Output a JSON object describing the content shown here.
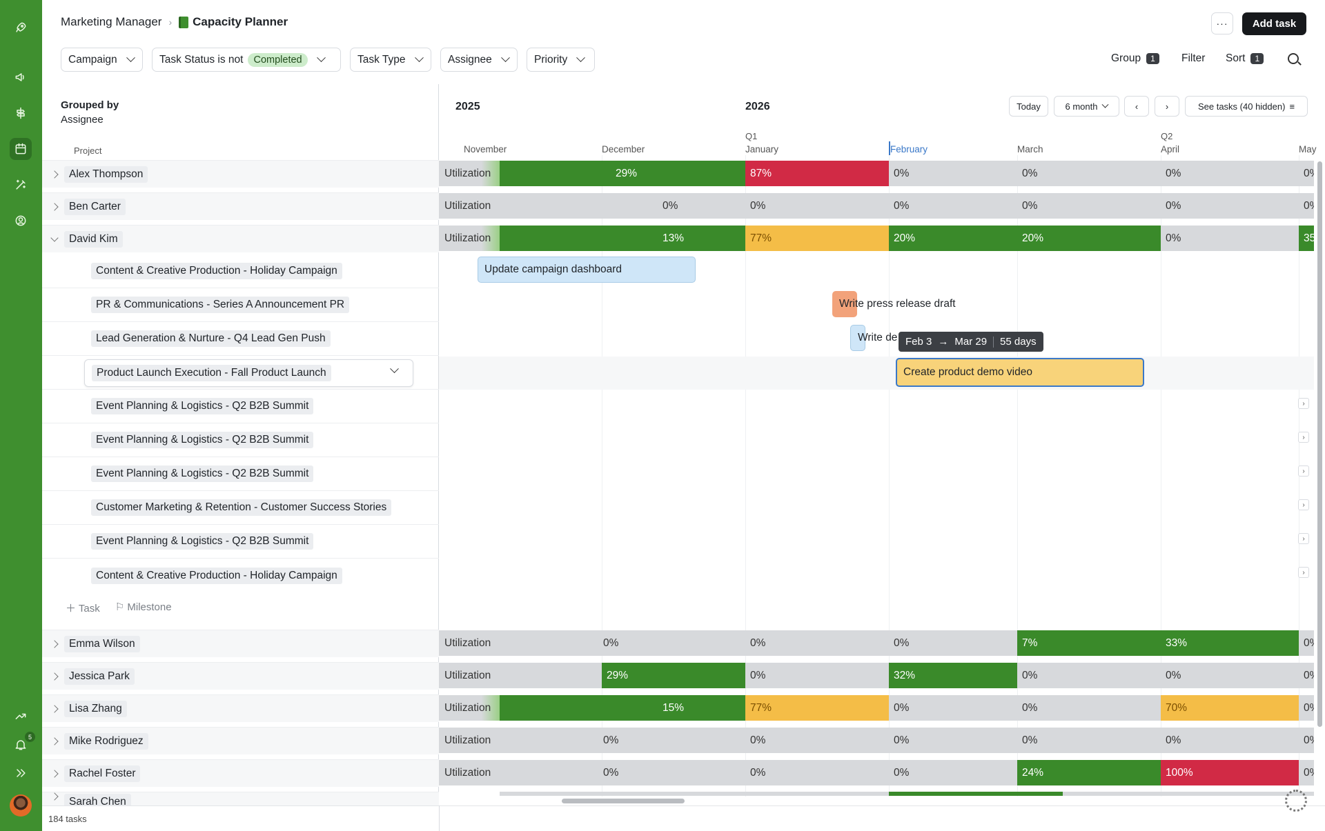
{
  "app": {
    "breadcrumb_parent": "Marketing Manager",
    "page_title": "Capacity Planner",
    "add_task": "Add task",
    "more": "···"
  },
  "filters": {
    "campaign": "Campaign",
    "task_status_prefix": "Task Status is not",
    "task_status_value": "Completed",
    "task_type": "Task Type",
    "assignee": "Assignee",
    "priority": "Priority",
    "group": "Group",
    "group_count": "1",
    "filter": "Filter",
    "sort": "Sort",
    "sort_count": "1"
  },
  "sidebar": {
    "icons": [
      "rocket-icon",
      "megaphone-icon",
      "signpost-icon",
      "calendar-icon",
      "magic-wand-icon",
      "user-circle-icon"
    ],
    "bottom_icons": [
      "trend-icon",
      "bell-icon",
      "expand-icon"
    ],
    "notifications": "5"
  },
  "left": {
    "grouped_by_label": "Grouped by",
    "grouped_by_value": "Assignee",
    "column_header": "Project",
    "add_task": "Task",
    "add_milestone": "Milestone",
    "task_count": "184 tasks"
  },
  "people": [
    {
      "name": "Alex Thompson"
    },
    {
      "name": "Ben Carter"
    },
    {
      "name": "David Kim"
    },
    {
      "name": "Emma Wilson"
    },
    {
      "name": "Jessica Park"
    },
    {
      "name": "Lisa Zhang"
    },
    {
      "name": "Mike Rodriguez"
    },
    {
      "name": "Rachel Foster"
    },
    {
      "name": "Sarah Chen"
    }
  ],
  "david_projects": [
    "Content & Creative Production - Holiday Campaign",
    "PR & Communications - Series A Announcement PR",
    "Lead Generation & Nurture - Q4 Lead Gen Push",
    "Product Launch Execution - Fall Product Launch",
    "Event Planning & Logistics - Q2 B2B Summit",
    "Event Planning & Logistics - Q2 B2B Summit",
    "Event Planning & Logistics - Q2 B2B Summit",
    "Customer Marketing & Retention - Customer Success Stories",
    "Event Planning & Logistics - Q2 B2B Summit",
    "Content & Creative Production - Holiday Campaign"
  ],
  "timeline": {
    "year_2025": "2025",
    "year_2026": "2026",
    "today": "Today",
    "range": "6 month",
    "see_tasks": "See tasks (40 hidden)",
    "q1": "Q1",
    "q2": "Q2",
    "months": [
      "November",
      "December",
      "January",
      "February",
      "March",
      "April",
      "May"
    ],
    "utilization_label": "Utilization"
  },
  "utilization": {
    "alex": [
      "29%",
      "87%",
      "0%",
      "0%",
      "0%",
      "0%"
    ],
    "ben": [
      "0%",
      "0%",
      "0%",
      "0%",
      "0%",
      "0%"
    ],
    "david": [
      "13%",
      "77%",
      "20%",
      "20%",
      "0%",
      "35"
    ],
    "emma": [
      "0%",
      "0%",
      "0%",
      "7%",
      "33%",
      "0%"
    ],
    "jessica": [
      "29%",
      "0%",
      "32%",
      "0%",
      "0%",
      "0%"
    ],
    "lisa": [
      "15%",
      "77%",
      "0%",
      "0%",
      "70%",
      "0%"
    ],
    "mike": [
      "0%",
      "0%",
      "0%",
      "0%",
      "0%",
      "0%"
    ],
    "rachel": [
      "0%",
      "0%",
      "0%",
      "24%",
      "100%",
      "0%"
    ]
  },
  "tasks": {
    "update_dashboard": "Update campaign dashboard",
    "press_release": "Write press release draft",
    "write_de": "Write de",
    "demo_video": "Create product demo video"
  },
  "tooltip": {
    "start": "Feb 3",
    "end": "Mar 29",
    "duration": "55 days"
  },
  "colors": {
    "rail": "#3f8f2f",
    "green": "#3a8a2a",
    "red": "#d12a45",
    "yellow": "#f4bd47",
    "gray": "#d7d9dc"
  }
}
